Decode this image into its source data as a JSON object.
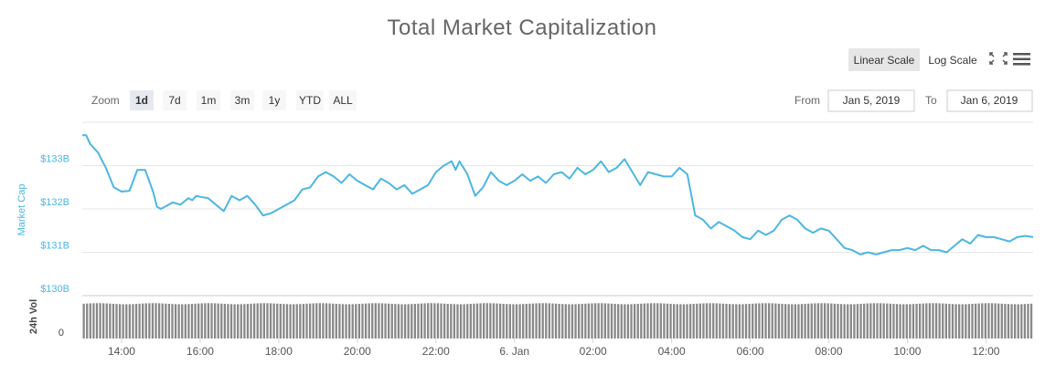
{
  "header": {
    "title": "Total Market Capitalization"
  },
  "toolbar": {
    "linear_scale": "Linear Scale",
    "log_scale": "Log Scale",
    "fullscreen_icon": "expand-icon",
    "menu_icon": "hamburger-menu-icon",
    "active_scale": "linear"
  },
  "zoom": {
    "label": "Zoom",
    "options": [
      "1d",
      "7d",
      "1m",
      "3m",
      "1y",
      "YTD",
      "ALL"
    ],
    "selected": "1d"
  },
  "range": {
    "from_label": "From",
    "from_value": "Jan 5, 2019",
    "to_label": "To",
    "to_value": "Jan 6, 2019"
  },
  "colors": {
    "line": "#4db6e2",
    "volume": "#888888",
    "grid": "#e6e6e6",
    "axis_label": "#4db6e2"
  },
  "chart_data": [
    {
      "type": "line",
      "title": "Total Market Capitalization",
      "ylabel": "Market Cap",
      "ylim": [
        130,
        134
      ],
      "yticks": [
        130,
        131,
        132,
        133
      ],
      "ytick_labels": [
        "$130B",
        "$131B",
        "$132B",
        "$133B"
      ],
      "x_ticks": [
        "14:00",
        "16:00",
        "18:00",
        "20:00",
        "22:00",
        "6. Jan",
        "02:00",
        "04:00",
        "06:00",
        "08:00",
        "10:00",
        "12:00"
      ],
      "x_tick_hours": [
        14,
        16,
        18,
        20,
        22,
        24,
        26,
        28,
        30,
        32,
        34,
        36
      ],
      "xlim_hours": [
        13,
        37.2
      ],
      "grid": true,
      "series": [
        {
          "x_hours": [
            13.0,
            13.1,
            13.2,
            13.4,
            13.6,
            13.8,
            14.0,
            14.2,
            14.4,
            14.6,
            14.8,
            14.9,
            15.0,
            15.3,
            15.5,
            15.7,
            15.8,
            15.9,
            16.0,
            16.2,
            16.4,
            16.6,
            16.8,
            17.0,
            17.2,
            17.4,
            17.6,
            17.8,
            18.0,
            18.2,
            18.4,
            18.6,
            18.8,
            19.0,
            19.2,
            19.4,
            19.6,
            19.8,
            20.0,
            20.2,
            20.4,
            20.6,
            20.8,
            21.0,
            21.2,
            21.4,
            21.6,
            21.8,
            22.0,
            22.2,
            22.4,
            22.5,
            22.6,
            22.8,
            23.0,
            23.2,
            23.4,
            23.6,
            23.8,
            24.0,
            24.2,
            24.4,
            24.6,
            24.8,
            25.0,
            25.2,
            25.4,
            25.6,
            25.8,
            26.0,
            26.2,
            26.4,
            26.6,
            26.8,
            27.0,
            27.2,
            27.4,
            27.6,
            27.8,
            28.0,
            28.2,
            28.4,
            28.6,
            28.8,
            29.0,
            29.2,
            29.4,
            29.6,
            29.8,
            30.0,
            30.2,
            30.4,
            30.6,
            30.8,
            31.0,
            31.2,
            31.4,
            31.6,
            31.8,
            32.0,
            32.2,
            32.4,
            32.6,
            32.8,
            33.0,
            33.2,
            33.4,
            33.6,
            33.8,
            34.0,
            34.2,
            34.4,
            34.6,
            34.8,
            35.0,
            35.2,
            35.4,
            35.6,
            35.8,
            36.0,
            36.2,
            36.4,
            36.6,
            36.8,
            37.0,
            37.2
          ],
          "values": [
            133.7,
            133.7,
            133.5,
            133.3,
            132.95,
            132.5,
            132.4,
            132.42,
            132.9,
            132.9,
            132.4,
            132.05,
            132.0,
            132.15,
            132.1,
            132.25,
            132.2,
            132.3,
            132.28,
            132.25,
            132.1,
            131.95,
            132.3,
            132.2,
            132.3,
            132.1,
            131.85,
            131.9,
            132.0,
            132.1,
            132.2,
            132.45,
            132.5,
            132.75,
            132.85,
            132.75,
            132.6,
            132.8,
            132.65,
            132.55,
            132.45,
            132.7,
            132.6,
            132.45,
            132.55,
            132.35,
            132.45,
            132.55,
            132.85,
            133.0,
            133.1,
            132.9,
            133.1,
            132.8,
            132.3,
            132.5,
            132.85,
            132.65,
            132.55,
            132.65,
            132.8,
            132.65,
            132.75,
            132.6,
            132.8,
            132.85,
            132.7,
            132.95,
            132.8,
            132.9,
            133.1,
            132.85,
            132.95,
            133.15,
            132.85,
            132.55,
            132.85,
            132.8,
            132.75,
            132.75,
            132.95,
            132.8,
            131.85,
            131.75,
            131.55,
            131.7,
            131.6,
            131.5,
            131.35,
            131.3,
            131.5,
            131.4,
            131.5,
            131.75,
            131.85,
            131.75,
            131.55,
            131.45,
            131.55,
            131.5,
            131.3,
            131.1,
            131.05,
            130.95,
            131.0,
            130.95,
            131.0,
            131.05,
            131.05,
            131.1,
            131.05,
            131.15,
            131.05,
            131.05,
            131.0,
            131.15,
            131.3,
            131.2,
            131.4,
            131.35,
            131.35,
            131.3,
            131.25,
            131.35,
            131.38,
            131.35
          ]
        }
      ]
    },
    {
      "type": "bar",
      "title": "",
      "ylabel": "24h Vol",
      "ytick_labels": [
        "0"
      ],
      "bar_count": 290,
      "relative_level": 0.88
    }
  ]
}
